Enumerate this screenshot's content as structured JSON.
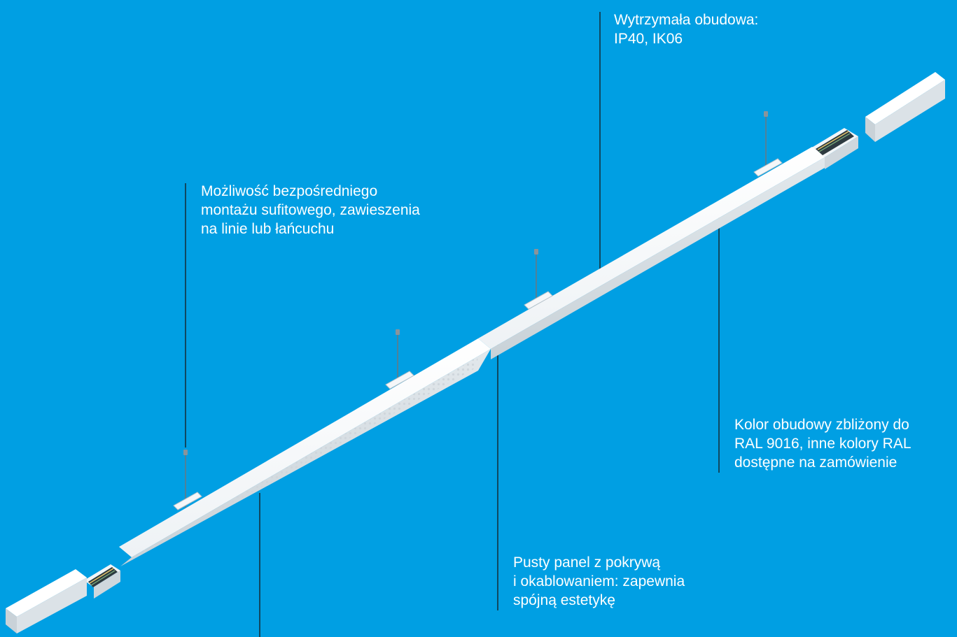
{
  "callouts": {
    "housing": {
      "lines": [
        "Wytrzymała obudowa:",
        "IP40, IK06"
      ]
    },
    "mounting": {
      "lines": [
        "Możliwość bezpośredniego",
        "montażu sufitowego, zawieszenia",
        "na linie lub łańcuchu"
      ]
    },
    "color": {
      "lines": [
        "Kolor obudowy zbliżony do",
        "RAL 9016, inne kolory RAL",
        "dostępne na zamówienie"
      ]
    },
    "panel": {
      "lines": [
        "Pusty panel z pokrywą",
        "i okablowaniem: zapewnia",
        "spójną estetykę"
      ]
    }
  },
  "colors": {
    "background": "#009fe3",
    "text": "#ffffff",
    "leader": "#1a1a1a",
    "housing": "#ffffff",
    "shadow": "#d6dde2"
  }
}
